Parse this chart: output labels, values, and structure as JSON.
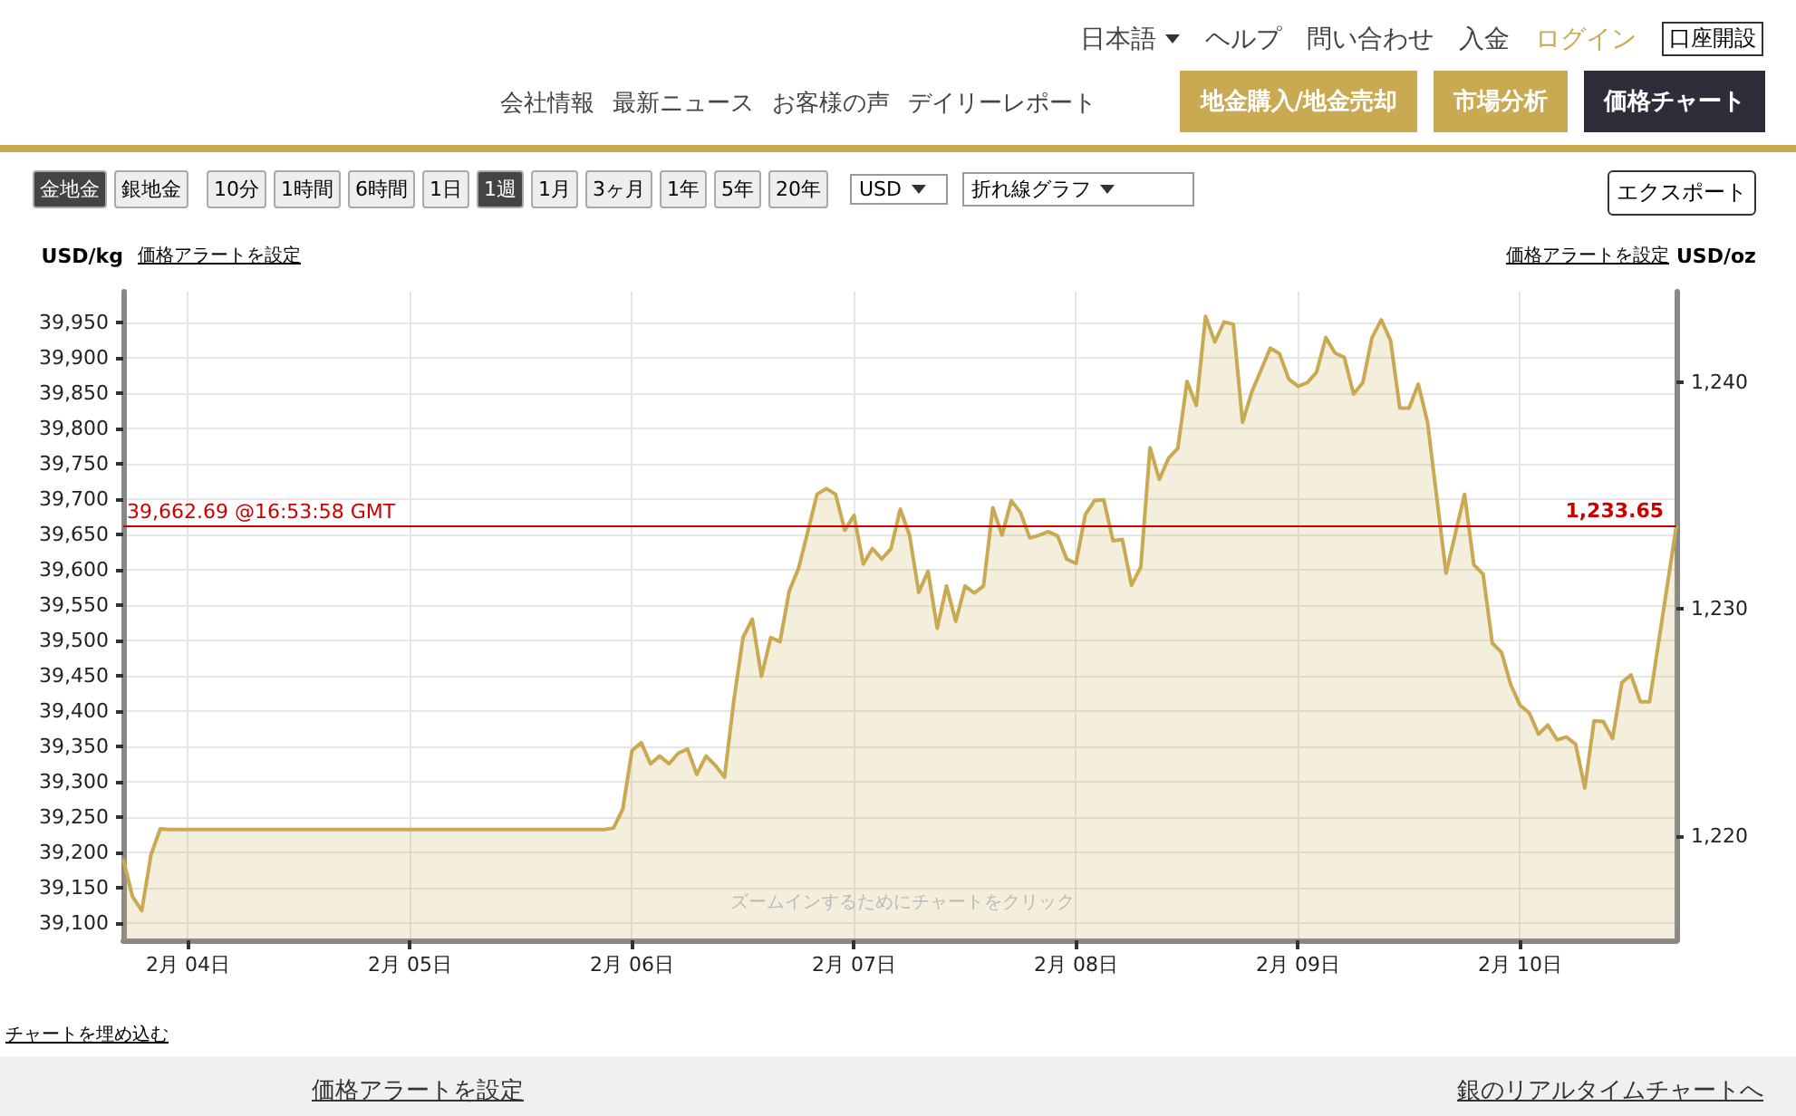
{
  "chart_data": {
    "type": "area",
    "ylabel": "USD/kg",
    "y2label": "USD/oz",
    "annotations": [
      "価格アラートを設定",
      "価格アラートを設定",
      "ズームインするためにチャートをクリック",
      "チャートを埋め込む",
      "価格アラートを設定",
      "銀のリアルタイムチャートへ",
      "日本語",
      "ヘルプ",
      "問い合わせ",
      "入金",
      "ログイン",
      "口座開設",
      "会社情報",
      "最新ニュース",
      "お客様の声",
      "デイリーレポート",
      "地金購入/地金売却",
      "市場分析",
      "価格チャート",
      "金地金",
      "銀地金",
      "10分",
      "1時間",
      "6時間",
      "1日",
      "1週",
      "1月",
      "3ヶ月",
      "1年",
      "5年",
      "20年",
      "USD",
      "折れ線グラフ",
      "エクスポート",
      {
        "text": "1,233.65",
        "x": "--02-10T16:54",
        "y": 39662.69
      }
    ],
    "x": [
      "--02-03T17:00",
      "--02-03T18:00",
      "--02-03T19:00",
      "--02-03T20:00",
      "--02-03T21:00",
      "--02-03T22:00",
      "--02-05T21:00",
      "--02-05T22:00",
      "--02-05T23:00",
      "--02-06T00:00",
      "--02-06T01:00",
      "--02-06T02:00",
      "--02-06T03:00",
      "--02-06T04:00",
      "--02-06T05:00",
      "--02-06T06:00",
      "--02-06T07:00",
      "--02-06T08:00",
      "--02-06T09:00",
      "--02-06T10:00",
      "--02-06T11:00",
      "--02-06T12:00",
      "--02-06T13:00",
      "--02-06T14:00",
      "--02-06T15:00",
      "--02-06T16:00",
      "--02-06T17:00",
      "--02-06T18:00",
      "--02-06T19:00",
      "--02-06T20:00",
      "--02-06T21:00",
      "--02-06T22:00",
      "--02-06T23:00",
      "--02-07T00:00",
      "--02-07T01:00",
      "--02-07T02:00",
      "--02-07T03:00",
      "--02-07T04:00",
      "--02-07T05:00",
      "--02-07T06:00",
      "--02-07T07:00",
      "--02-07T08:00",
      "--02-07T09:00",
      "--02-07T10:00",
      "--02-07T11:00",
      "--02-07T12:00",
      "--02-07T13:00",
      "--02-07T14:00",
      "--02-07T15:00",
      "--02-07T16:00",
      "--02-07T17:00",
      "--02-07T18:00",
      "--02-07T19:00",
      "--02-07T20:00",
      "--02-07T21:00",
      "--02-07T22:00",
      "--02-07T23:00",
      "--02-08T00:00",
      "--02-08T01:00",
      "--02-08T02:00",
      "--02-08T03:00",
      "--02-08T04:00",
      "--02-08T05:00",
      "--02-08T06:00",
      "--02-08T07:00",
      "--02-08T08:00",
      "--02-08T09:00",
      "--02-08T10:00",
      "--02-08T11:00",
      "--02-08T12:00",
      "--02-08T13:00",
      "--02-08T14:00",
      "--02-08T15:00",
      "--02-08T16:00",
      "--02-08T17:00",
      "--02-08T18:00",
      "--02-08T19:00",
      "--02-08T20:00",
      "--02-08T21:00",
      "--02-08T22:00",
      "--02-08T23:00",
      "--02-09T00:00",
      "--02-09T01:00",
      "--02-09T02:00",
      "--02-09T03:00",
      "--02-09T04:00",
      "--02-09T05:00",
      "--02-09T06:00",
      "--02-09T07:00",
      "--02-09T08:00",
      "--02-09T09:00",
      "--02-09T10:00",
      "--02-09T11:00",
      "--02-09T12:00",
      "--02-09T13:00",
      "--02-09T14:00",
      "--02-09T16:00",
      "--02-09T18:00",
      "--02-09T19:00",
      "--02-09T20:00",
      "--02-09T21:00",
      "--02-09T22:00",
      "--02-09T23:00",
      "--02-10T00:00",
      "--02-10T01:00",
      "--02-10T02:00",
      "--02-10T03:00",
      "--02-10T04:00",
      "--02-10T05:00",
      "--02-10T06:00",
      "--02-10T07:00",
      "--02-10T08:00",
      "--02-10T09:00",
      "--02-10T10:00",
      "--02-10T11:00",
      "--02-10T12:00",
      "--02-10T13:00",
      "--02-10T14:00",
      "--02-10T16:54"
    ],
    "series": [
      {
        "color": "#c9a952",
        "values": [
          39190,
          39137,
          39117,
          39196,
          39233,
          39232,
          39232,
          39234,
          39261,
          39344,
          39355,
          39325,
          39336,
          39325,
          39340,
          39346,
          39310,
          39336,
          39323,
          39306,
          39414,
          39504,
          39530,
          39449,
          39504,
          39498,
          39570,
          39602,
          39654,
          39707,
          39715,
          39707,
          39656,
          39677,
          39608,
          39630,
          39615,
          39630,
          39686,
          39649,
          39568,
          39598,
          39517,
          39577,
          39527,
          39577,
          39567,
          39577,
          39688,
          39649,
          39698,
          39681,
          39645,
          39649,
          39654,
          39648,
          39615,
          39609,
          39678,
          39698,
          39699,
          39641,
          39643,
          39578,
          39604,
          39773,
          39728,
          39758,
          39772,
          39867,
          39833,
          39959,
          39923,
          39951,
          39948,
          39809,
          39852,
          39883,
          39914,
          39906,
          39870,
          39860,
          39865,
          39880,
          39929,
          39907,
          39901,
          39849,
          39865,
          39929,
          39954,
          39925,
          39829,
          39829,
          39863,
          39809,
          39595,
          39707,
          39607,
          39594,
          39496,
          39483,
          39437,
          39408,
          39397,
          39367,
          39380,
          39359,
          39363,
          39353,
          39291,
          39386,
          39385,
          39361,
          39440,
          39451,
          39413,
          39413,
          39662.69
        ]
      }
    ],
    "xlim": [
      "--02-03T17:00",
      "--02-10T16:54"
    ],
    "xticks": [
      {
        "value": "--02-04",
        "label": "2月 04日"
      },
      {
        "value": "--02-05",
        "label": "2月 05日"
      },
      {
        "value": "--02-06",
        "label": "2月 06日"
      },
      {
        "value": "--02-07",
        "label": "2月 07日"
      },
      {
        "value": "--02-08",
        "label": "2月 08日"
      },
      {
        "value": "--02-09",
        "label": "2月 09日"
      },
      {
        "value": "--02-10",
        "label": "2月 10日"
      }
    ],
    "ylim": [
      39075,
      39994
    ],
    "yticks": [
      {
        "value": 39100,
        "label": "39,100"
      },
      {
        "value": 39150,
        "label": "39,150"
      },
      {
        "value": 39200,
        "label": "39,200"
      },
      {
        "value": 39250,
        "label": "39,250"
      },
      {
        "value": 39300,
        "label": "39,300"
      },
      {
        "value": 39350,
        "label": "39,350"
      },
      {
        "value": 39400,
        "label": "39,400"
      },
      {
        "value": 39450,
        "label": "39,450"
      },
      {
        "value": 39500,
        "label": "39,500"
      },
      {
        "value": 39550,
        "label": "39,550"
      },
      {
        "value": 39600,
        "label": "39,600"
      },
      {
        "value": 39650,
        "label": "39,650"
      },
      {
        "value": 39700,
        "label": "39,700"
      },
      {
        "value": 39750,
        "label": "39,750"
      },
      {
        "value": 39800,
        "label": "39,800"
      },
      {
        "value": 39850,
        "label": "39,850"
      },
      {
        "value": 39900,
        "label": "39,900"
      },
      {
        "value": 39950,
        "label": "39,950"
      }
    ],
    "y2lim": [
      1215.4,
      1244.0
    ],
    "y2ticks": [
      {
        "value": 1220,
        "label": "1,220"
      },
      {
        "value": 1230,
        "label": "1,230"
      },
      {
        "value": 1240,
        "label": "1,240"
      }
    ],
    "ref_lines": [
      {
        "axis": "y",
        "value": 39662.69,
        "label": "39,662.69 @16:53:58 GMT",
        "color": "#cc0000"
      }
    ],
    "grid": true,
    "marker": "none",
    "line_style": "solid"
  }
}
